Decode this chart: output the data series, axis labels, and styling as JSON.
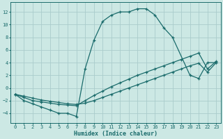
{
  "xlabel": "Humidex (Indice chaleur)",
  "xlim": [
    -0.5,
    23.5
  ],
  "ylim": [
    -5.5,
    13.5
  ],
  "xticks": [
    0,
    1,
    2,
    3,
    4,
    5,
    6,
    7,
    8,
    9,
    10,
    11,
    12,
    13,
    14,
    15,
    16,
    17,
    18,
    19,
    20,
    21,
    22,
    23
  ],
  "yticks": [
    -4,
    -2,
    0,
    2,
    4,
    6,
    8,
    10,
    12
  ],
  "bg_color": "#cce8e4",
  "grid_color": "#aacccc",
  "line_color": "#1a6b6b",
  "line1_x": [
    0,
    1,
    2,
    3,
    4,
    5,
    6,
    7,
    8,
    9,
    10,
    11,
    12,
    13,
    14,
    15,
    16,
    17,
    18,
    20,
    21,
    22,
    23
  ],
  "line1_y": [
    -1,
    -2,
    -2.5,
    -3,
    -3.5,
    -4,
    -4,
    -4.5,
    3.0,
    7.5,
    10.5,
    11.5,
    12.0,
    12.0,
    12.5,
    12.5,
    11.5,
    9.5,
    8.0,
    2.0,
    1.5,
    4.0,
    4.0
  ],
  "line2_x": [
    0,
    1,
    2,
    3,
    4,
    5,
    6,
    7,
    8,
    9,
    10,
    11,
    12,
    13,
    14,
    15,
    16,
    17,
    18,
    19,
    20,
    21,
    22,
    23
  ],
  "line2_y": [
    -1,
    -1.5,
    -2.0,
    -2.2,
    -2.4,
    -2.6,
    -2.7,
    -2.8,
    -2.0,
    -1.2,
    -0.5,
    0.2,
    0.8,
    1.4,
    2.0,
    2.5,
    3.0,
    3.5,
    4.0,
    4.5,
    5.0,
    5.5,
    3.0,
    4.2
  ],
  "line3_x": [
    0,
    1,
    2,
    3,
    4,
    5,
    6,
    7,
    8,
    9,
    10,
    11,
    12,
    13,
    14,
    15,
    16,
    17,
    18,
    19,
    20,
    21,
    22,
    23
  ],
  "line3_y": [
    -1,
    -1.3,
    -1.6,
    -1.9,
    -2.1,
    -2.3,
    -2.5,
    -2.6,
    -2.4,
    -2.0,
    -1.5,
    -1.0,
    -0.5,
    0.0,
    0.5,
    1.0,
    1.5,
    2.0,
    2.5,
    3.0,
    3.5,
    3.9,
    2.5,
    4.0
  ],
  "marker": "+"
}
